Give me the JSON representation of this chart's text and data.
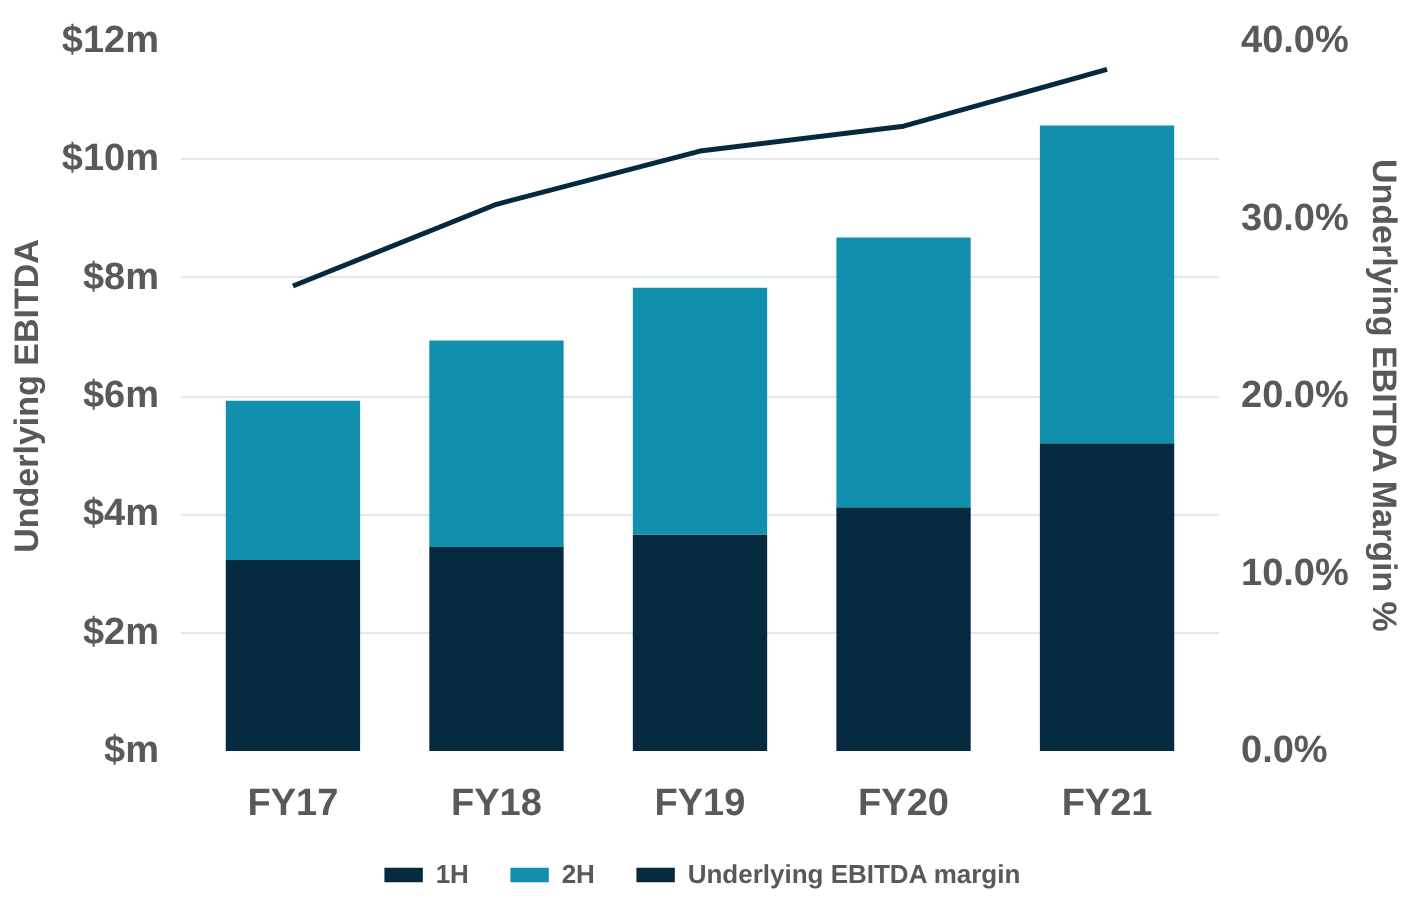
{
  "chart_data": {
    "type": "bar",
    "stacked": true,
    "ylabel": "Underlying EBITDA",
    "y2label": "Underlying EBITDA Margin %",
    "categories": [
      "FY17",
      "FY18",
      "FY19",
      "FY20",
      "FY21"
    ],
    "series": [
      {
        "name": "1H",
        "color": "#052a3f",
        "values": [
          3.23,
          3.45,
          3.66,
          4.12,
          5.2
        ]
      },
      {
        "name": "2H",
        "color": "#138fae",
        "values": [
          2.69,
          3.49,
          4.17,
          4.56,
          5.37
        ]
      },
      {
        "name": "Underlying EBITDA margin",
        "type": "line",
        "axis": "y2",
        "color": "#052a3f",
        "values": [
          26.2,
          30.8,
          33.8,
          35.2,
          38.4
        ]
      }
    ],
    "ylim": [
      0,
      12
    ],
    "yticks": [
      {
        "value": 0,
        "label": "$m"
      },
      {
        "value": 2,
        "label": "$2m"
      },
      {
        "value": 4,
        "label": "$4m"
      },
      {
        "value": 6,
        "label": "$6m"
      },
      {
        "value": 8,
        "label": "$8m"
      },
      {
        "value": 10,
        "label": "$10m"
      },
      {
        "value": 12,
        "label": "$12m"
      }
    ],
    "y2lim": [
      0,
      40
    ],
    "y2ticks": [
      {
        "value": 0,
        "label": "0.0%"
      },
      {
        "value": 10,
        "label": "10.0%"
      },
      {
        "value": 20,
        "label": "20.0%"
      },
      {
        "value": 30,
        "label": "30.0%"
      },
      {
        "value": 40,
        "label": "40.0%"
      }
    ],
    "grid": "y",
    "legend": "bottom",
    "marker": "none",
    "line_style": "solid"
  }
}
